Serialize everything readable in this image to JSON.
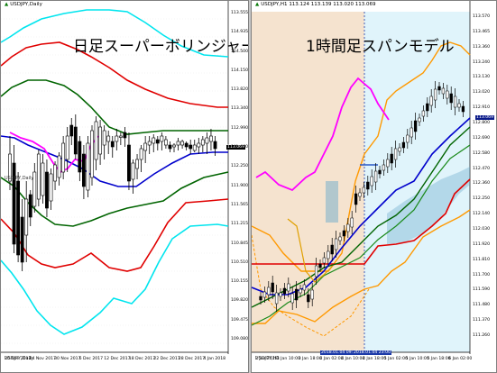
{
  "left": {
    "symbol": "USDJPY,Daily",
    "symbol_icon": "triangle-up-icon",
    "title": "日足スーパーボリンジャー",
    "sub_label": "USDJPY,Daily",
    "price_marker": "113.069",
    "y_ticks": [
      "113.555",
      "114.935",
      "114.500",
      "114.150",
      "113.820",
      "113.340",
      "112.990",
      "112.660",
      "112.250",
      "111.900",
      "111.565",
      "111.215",
      "110.845",
      "110.510",
      "110.155",
      "109.820",
      "109.475",
      "109.080"
    ],
    "x_ticks": [
      "20 Nov 2017",
      "24 Nov 2017",
      "30 Nov 2017",
      "6 Dec 2017",
      "12 Dec 2017",
      "18 Dec 2017",
      "22 Dec 2017",
      "28 Dec 2017",
      "4 Jan 2018"
    ]
  },
  "right": {
    "symbol": "USDJPY,H1",
    "symbol_values": "113.124 113.139 113.020 113.069",
    "symbol_icon": "triangle-up-icon",
    "title": "1時間足スパンモデル",
    "sub_label": "USDJPY,H1",
    "price_marker": "113.069",
    "y_ticks": [
      "113.570",
      "113.465",
      "113.360",
      "113.240",
      "113.130",
      "113.020",
      "112.910",
      "112.800",
      "112.690",
      "112.580",
      "112.470",
      "112.360",
      "112.250",
      "112.140",
      "112.030",
      "111.920",
      "111.810",
      "111.700",
      "111.590",
      "111.480",
      "111.370",
      "111.260"
    ],
    "x_ticks": [
      "2 Jan 2018",
      "3 Jan 10:00",
      "3 Jan 18:00",
      "4 Jan 02:00",
      "4 Jan 10:00",
      "4 Jan 18:00",
      "5 Jan 02:00",
      "5 Jan 10:00",
      "5 Jan 18:00",
      "6 Jan 02:00"
    ],
    "highlight_labels": [
      "2018.01.04 09:00",
      "2018.01.04 23:00"
    ]
  },
  "colors": {
    "red_band": "#e00000",
    "green_band": "#006400",
    "cyan_band": "#00e5ee",
    "blue_mid": "#0000cc",
    "magenta_lag": "#ff00ff",
    "orange_band": "#ff9900",
    "bull": "#ffffff",
    "bear": "#000000",
    "span_fill_up": "#5fa3c9",
    "bg_left_zone": "#f5e3cf",
    "bg_right_zone": "#e0f4fb"
  }
}
